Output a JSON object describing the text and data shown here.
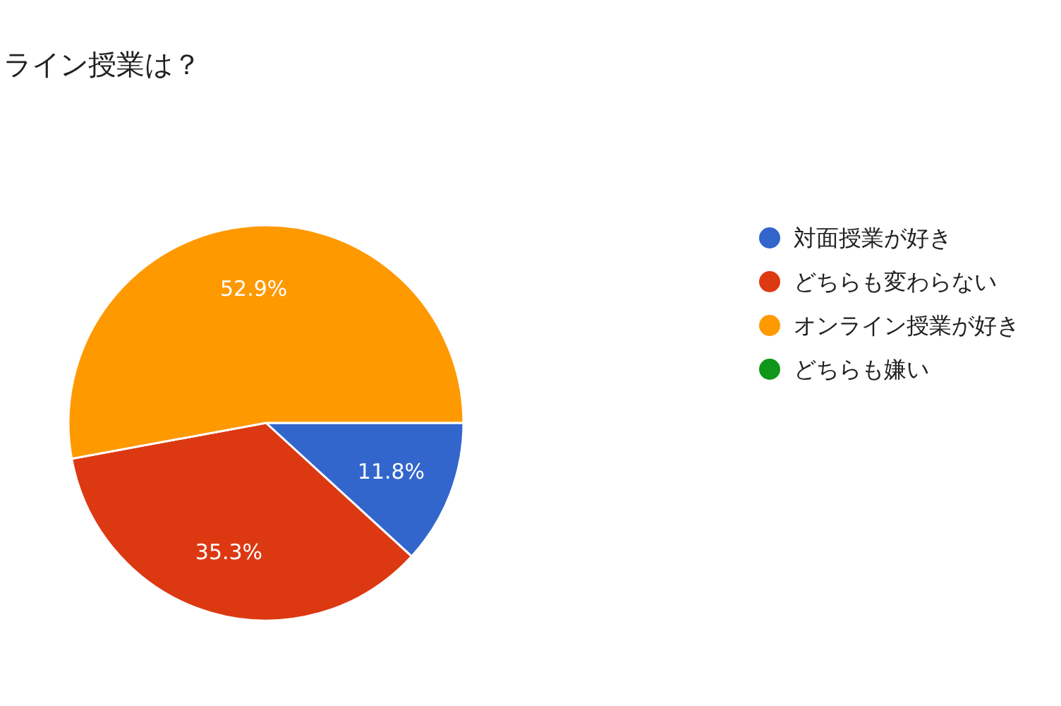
{
  "chart_data": {
    "type": "pie",
    "title": "ライン授業は？",
    "categories": [
      "対面授業が好き",
      "どちらも変わらない",
      "オンライン授業が好き",
      "どちらも嫌い"
    ],
    "values": [
      11.8,
      35.3,
      52.9,
      0
    ],
    "colors": [
      "#3366cc",
      "#dc3912",
      "#ff9900",
      "#109618"
    ],
    "value_labels": [
      "11.8%",
      "35.3%",
      "52.9%",
      null
    ],
    "legend": "right"
  }
}
